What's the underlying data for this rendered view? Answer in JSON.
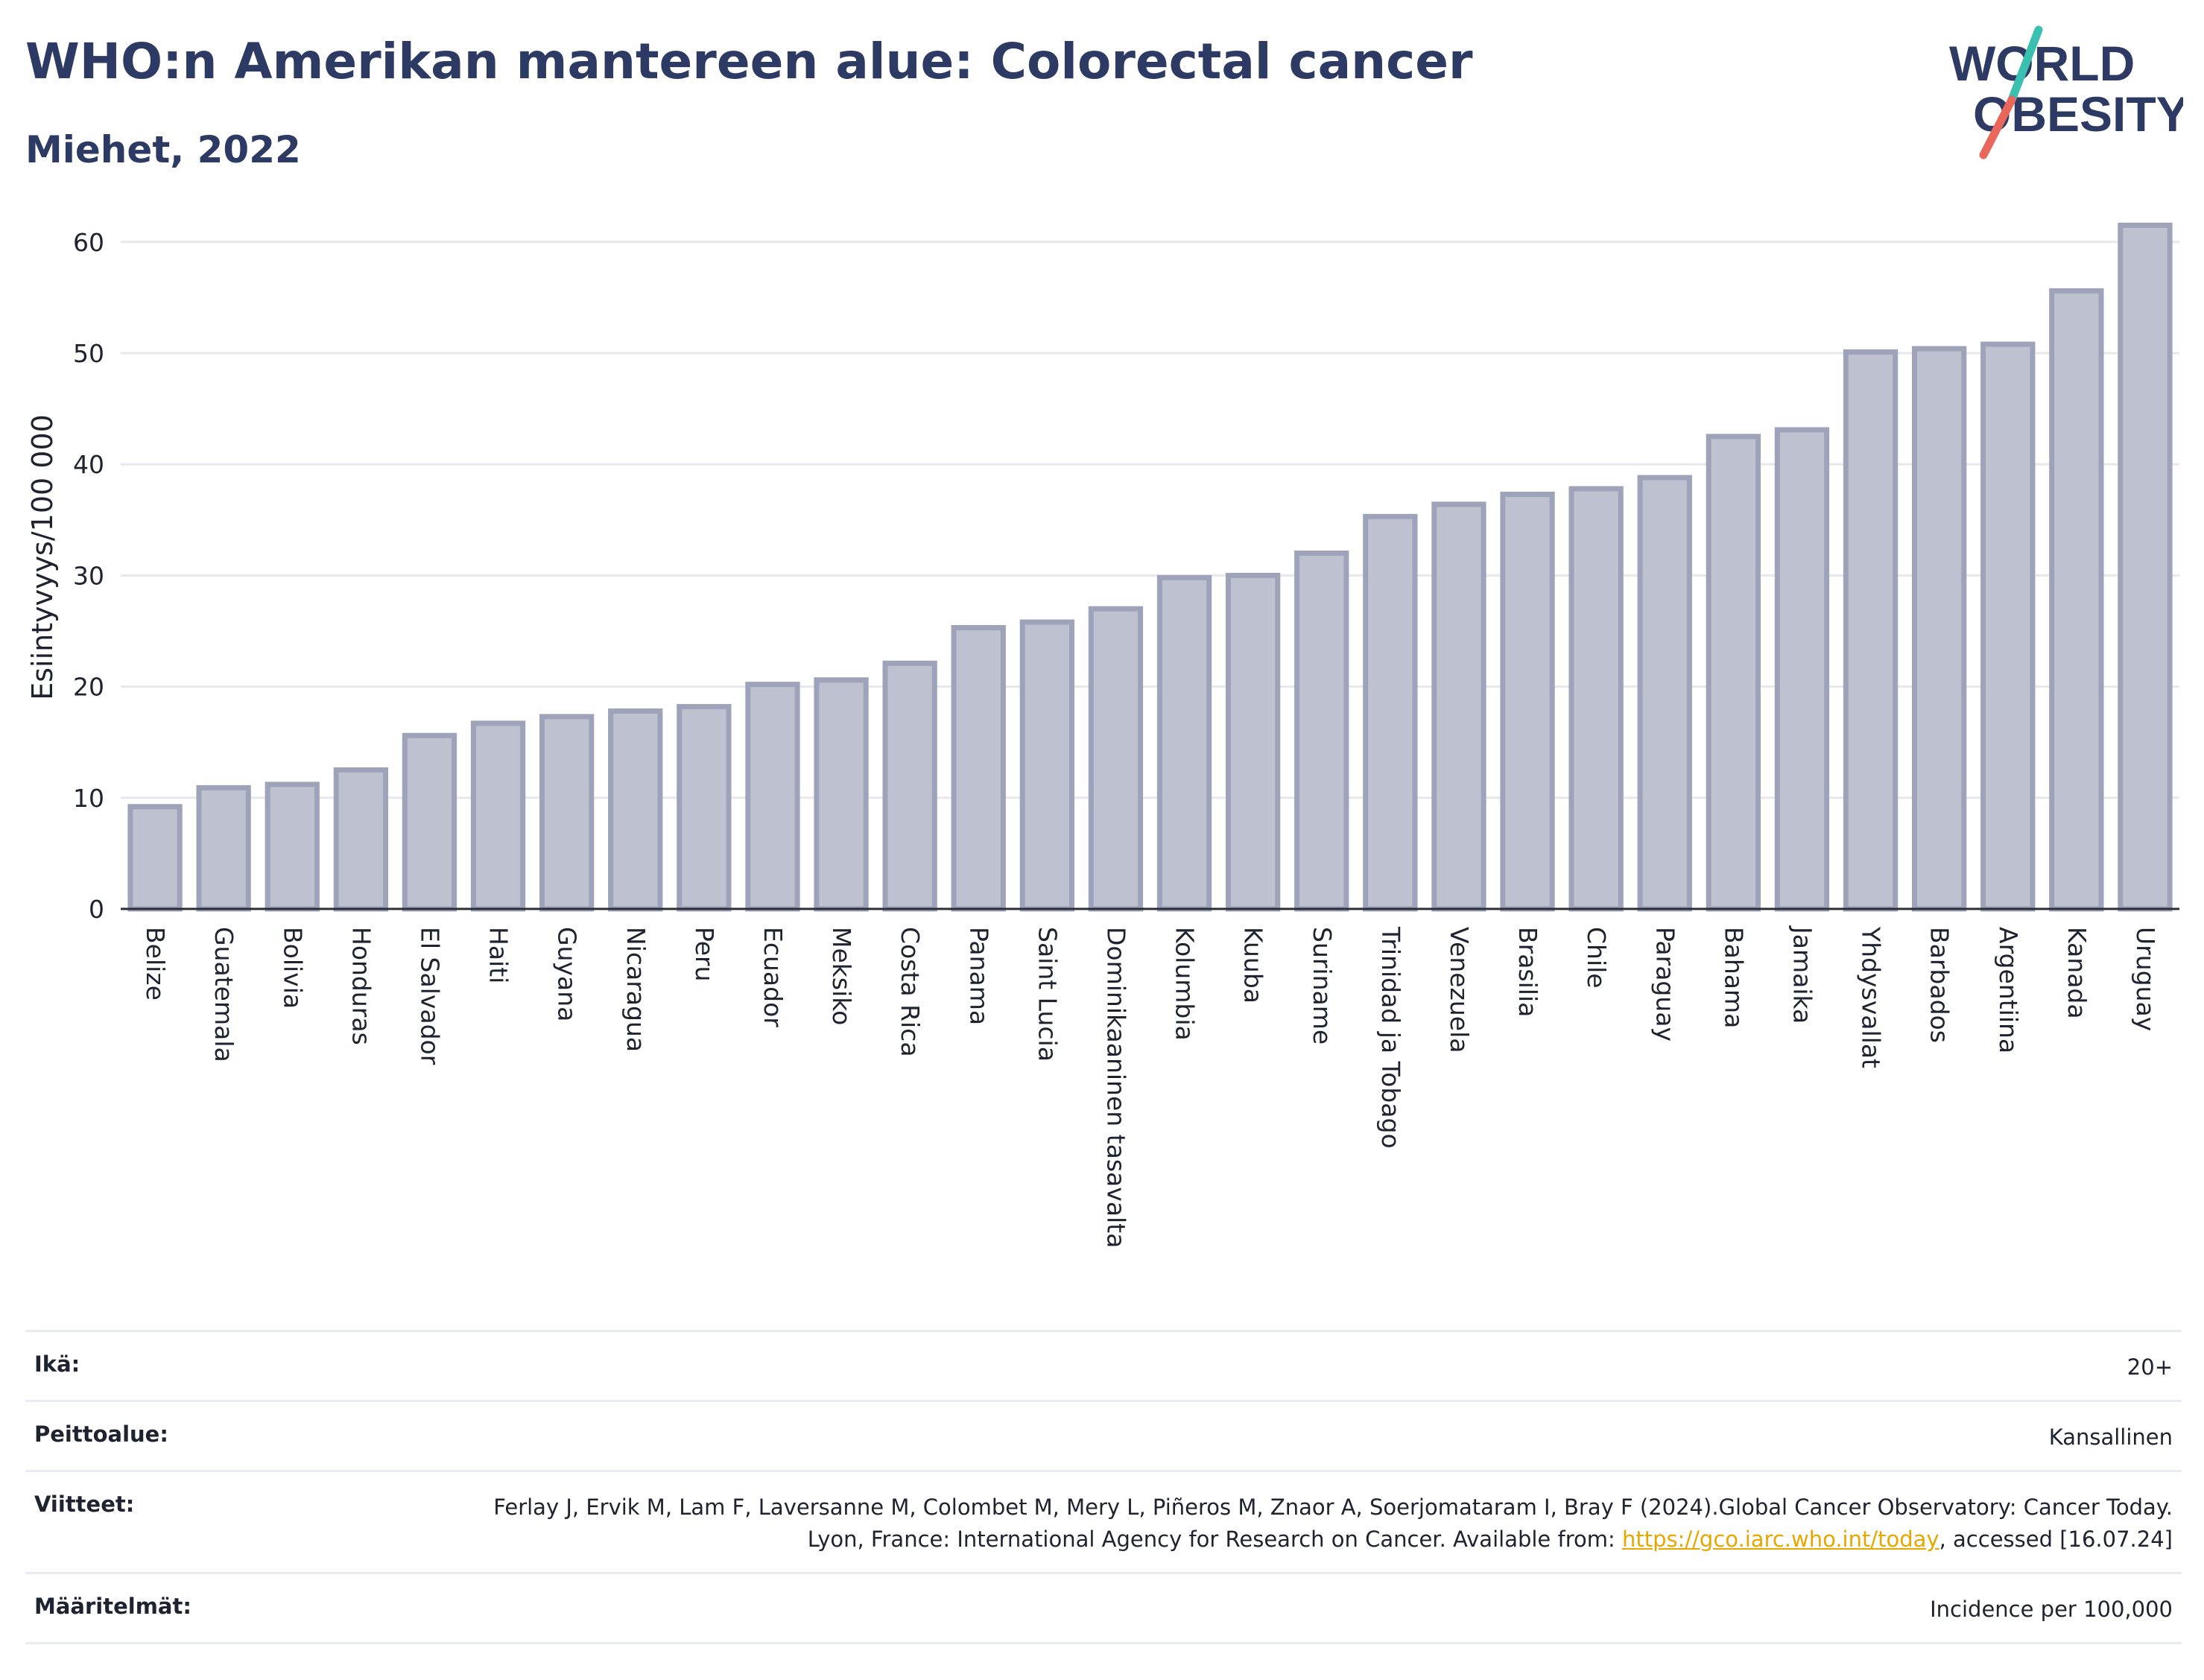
{
  "header": {
    "title": "WHO:n Amerikan mantereen alue: Colorectal cancer",
    "subtitle": "Miehet, 2022"
  },
  "logo": {
    "line1": "WORLD",
    "line2": "OBESITY",
    "accent_teal": "#3bbfb0",
    "accent_red": "#e8675a",
    "text_color": "#2d3a63"
  },
  "chart_data": {
    "type": "bar",
    "categories": [
      "Belize",
      "Guatemala",
      "Bolivia",
      "Honduras",
      "El Salvador",
      "Haiti",
      "Guyana",
      "Nicaragua",
      "Peru",
      "Ecuador",
      "Meksiko",
      "Costa Rica",
      "Panama",
      "Saint Lucia",
      "Dominikaaninen tasavalta",
      "Kolumbia",
      "Kuuba",
      "Suriname",
      "Trinidad ja Tobago",
      "Venezuela",
      "Brasilia",
      "Chile",
      "Paraguay",
      "Bahama",
      "Jamaika",
      "Yhdysvallat",
      "Barbados",
      "Argentiina",
      "Kanada",
      "Uruguay"
    ],
    "values": [
      9.2,
      10.9,
      11.2,
      12.5,
      15.6,
      16.7,
      17.3,
      17.8,
      18.2,
      20.2,
      20.6,
      22.1,
      25.3,
      25.8,
      27.0,
      29.8,
      30.0,
      32.0,
      35.3,
      36.4,
      37.3,
      37.8,
      38.8,
      42.5,
      43.1,
      50.1,
      50.4,
      50.8,
      55.6,
      61.5
    ],
    "ylabel": "Esiintyvyys/100 000",
    "ylim": [
      0,
      63
    ],
    "yticks": [
      0,
      10,
      20,
      30,
      40,
      50,
      60
    ],
    "grid": true,
    "bar_fill": "#bec1cf",
    "bar_stroke": "#9ea3b9"
  },
  "meta": {
    "rows": [
      {
        "label": "Ikä:",
        "value": "20+"
      },
      {
        "label": "Peittoalue:",
        "value": "Kansallinen"
      },
      {
        "label": "Viitteet:",
        "value_before": "Ferlay J, Ervik M, Lam F, Laversanne M, Colombet M, Mery L, Piñeros M, Znaor A, Soerjomataram I, Bray F (2024).Global Cancer Observatory: Cancer Today. Lyon, France: International Agency for Research on Cancer. Available from: ",
        "link": "https://gco.iarc.who.int/today",
        "value_after": ", accessed [16.07.24]"
      },
      {
        "label": "Määritelmät:",
        "value": "Incidence per 100,000"
      }
    ]
  }
}
